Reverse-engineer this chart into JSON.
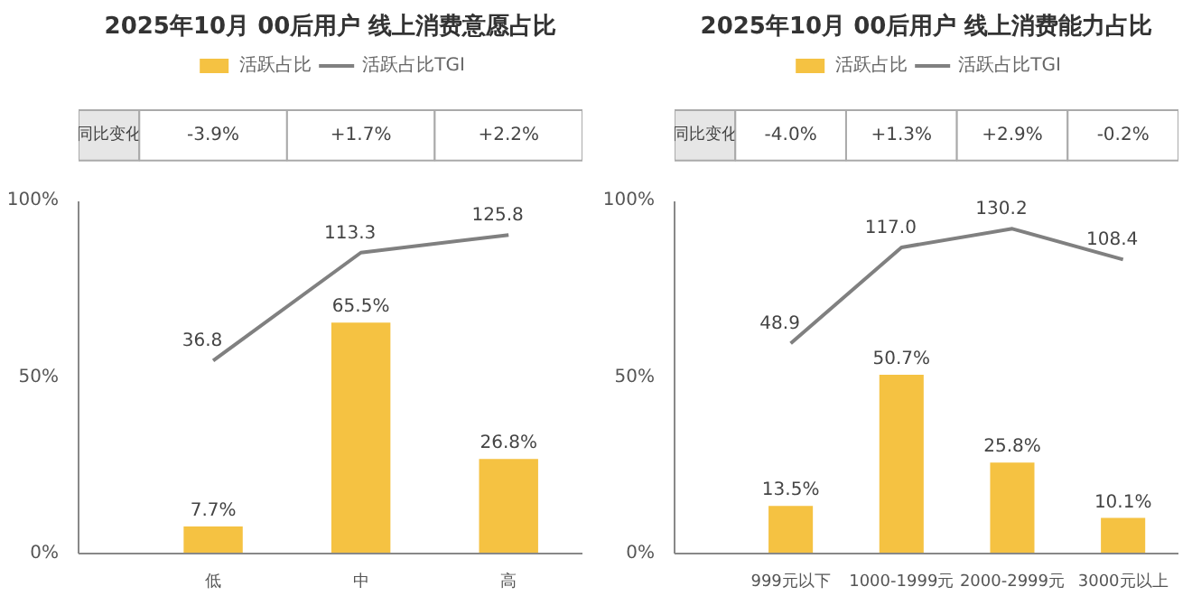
{
  "chart_data": [
    {
      "type": "bar",
      "title": "2025年10月 00后用户 线上消费意愿占比",
      "categories": [
        "低",
        "中",
        "高"
      ],
      "series": [
        {
          "name": "活跃占比",
          "color": "#f5c242",
          "values": [
            7.7,
            65.5,
            26.8
          ],
          "value_labels": [
            "7.7%",
            "65.5%",
            "26.8%"
          ]
        },
        {
          "name": "活跃占比TGI",
          "type": "line",
          "axis": "y2",
          "color": "#808080",
          "values": [
            36.8,
            113.3,
            125.8
          ],
          "value_labels": [
            "36.8",
            "113.3",
            "125.8"
          ]
        }
      ],
      "ylim": [
        0,
        100
      ],
      "yticks": [
        {
          "value": 0,
          "label": "0%"
        },
        {
          "value": 50,
          "label": "50%"
        },
        {
          "value": 100,
          "label": "100%"
        }
      ],
      "y2lim": [
        -100,
        150
      ],
      "legend": "top",
      "grid": false,
      "marker": "none",
      "annotations": [
        "同比变化",
        "-3.9%",
        "+1.7%",
        "+2.2%"
      ]
    },
    {
      "type": "bar",
      "title": "2025年10月 00后用户 线上消费能力占比",
      "categories": [
        "999元以下",
        "1000-1999元",
        "2000-2999元",
        "3000元以上"
      ],
      "series": [
        {
          "name": "活跃占比",
          "color": "#f5c242",
          "values": [
            13.5,
            50.7,
            25.8,
            10.1
          ],
          "value_labels": [
            "13.5%",
            "50.7%",
            "25.8%",
            "10.1%"
          ]
        },
        {
          "name": "活跃占比TGI",
          "type": "line",
          "axis": "y2",
          "color": "#808080",
          "values": [
            48.9,
            117.0,
            130.2,
            108.4
          ],
          "value_labels": [
            "48.9",
            "117.0",
            "130.2",
            "108.4"
          ]
        }
      ],
      "ylim": [
        0,
        100
      ],
      "yticks": [
        {
          "value": 0,
          "label": "0%"
        },
        {
          "value": 50,
          "label": "50%"
        },
        {
          "value": 100,
          "label": "100%"
        }
      ],
      "y2lim": [
        -100,
        150
      ],
      "legend": "top",
      "grid": false,
      "marker": "none",
      "annotations": [
        "同比变化",
        "-4.0%",
        "+1.3%",
        "+2.9%",
        "-0.2%"
      ]
    }
  ]
}
